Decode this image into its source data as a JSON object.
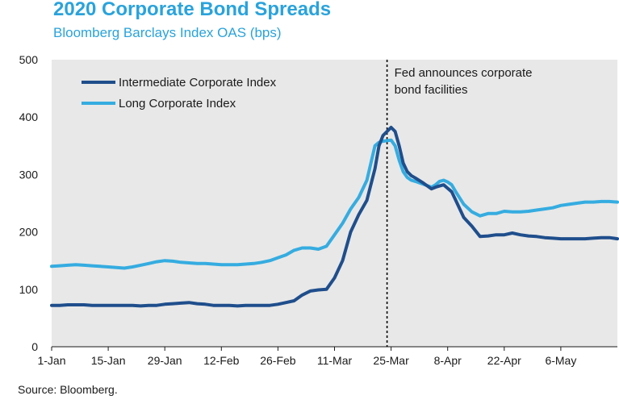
{
  "chart_data": {
    "type": "line",
    "title": "2020 Corporate Bond Spreads",
    "subtitle": "Bloomberg Barclays Index OAS (bps)",
    "source": "Source: Bloomberg.",
    "xlabel": "",
    "ylabel": "",
    "ylim": [
      0,
      500
    ],
    "yticks": [
      "0",
      "100",
      "200",
      "300",
      "400",
      "500"
    ],
    "xticks": [
      "1-Jan",
      "15-Jan",
      "29-Jan",
      "12-Feb",
      "26-Feb",
      "11-Mar",
      "25-Mar",
      "8-Apr",
      "22-Apr",
      "6-May"
    ],
    "xrange_days": [
      0,
      140
    ],
    "grid": false,
    "legend_position": "top-left",
    "annotation": {
      "lines": [
        "Fed announces corporate",
        "bond facilities"
      ],
      "x_day": 83
    },
    "series": [
      {
        "name": "Intermediate Corporate Index",
        "color": "#1f4e8c",
        "days": [
          0,
          2,
          4,
          6,
          8,
          10,
          12,
          14,
          16,
          18,
          20,
          22,
          24,
          26,
          28,
          30,
          32,
          34,
          36,
          38,
          40,
          42,
          44,
          46,
          48,
          50,
          52,
          54,
          56,
          58,
          60,
          62,
          64,
          66,
          68,
          70,
          72,
          74,
          76,
          78,
          80,
          81,
          82,
          83,
          84,
          85,
          86,
          87,
          88,
          89,
          90,
          92,
          94,
          95,
          96,
          97,
          98,
          99,
          100,
          102,
          104,
          106,
          108,
          110,
          112,
          114,
          116,
          118,
          120,
          122,
          124,
          126,
          128,
          130,
          132,
          134,
          136,
          138,
          140
        ],
        "values": [
          72,
          72,
          73,
          73,
          73,
          72,
          72,
          72,
          72,
          72,
          72,
          71,
          72,
          72,
          74,
          75,
          76,
          77,
          75,
          74,
          72,
          72,
          72,
          71,
          72,
          72,
          72,
          72,
          74,
          77,
          80,
          90,
          97,
          99,
          100,
          120,
          150,
          200,
          230,
          255,
          310,
          350,
          368,
          375,
          382,
          375,
          350,
          320,
          305,
          298,
          294,
          285,
          275,
          278,
          280,
          282,
          276,
          270,
          255,
          225,
          210,
          192,
          193,
          195,
          195,
          198,
          195,
          193,
          192,
          190,
          189,
          188,
          188,
          188,
          188,
          189,
          190,
          190,
          188
        ]
      },
      {
        "name": "Long Corporate Index",
        "color": "#35ace0",
        "days": [
          0,
          2,
          4,
          6,
          8,
          10,
          12,
          14,
          16,
          18,
          20,
          22,
          24,
          26,
          28,
          30,
          32,
          34,
          36,
          38,
          40,
          42,
          44,
          46,
          48,
          50,
          52,
          54,
          56,
          58,
          60,
          62,
          64,
          66,
          68,
          70,
          72,
          74,
          76,
          78,
          80,
          81,
          82,
          83,
          84,
          85,
          86,
          87,
          88,
          89,
          90,
          92,
          94,
          95,
          96,
          97,
          98,
          99,
          100,
          102,
          104,
          106,
          108,
          110,
          112,
          114,
          116,
          118,
          120,
          122,
          124,
          126,
          128,
          130,
          132,
          134,
          136,
          138,
          140
        ],
        "values": [
          140,
          141,
          142,
          143,
          142,
          141,
          140,
          139,
          138,
          137,
          139,
          142,
          145,
          148,
          150,
          149,
          147,
          146,
          145,
          145,
          144,
          143,
          143,
          143,
          144,
          145,
          147,
          150,
          155,
          160,
          168,
          172,
          172,
          170,
          175,
          195,
          215,
          240,
          260,
          290,
          350,
          356,
          358,
          359,
          360,
          350,
          325,
          305,
          295,
          290,
          288,
          283,
          278,
          282,
          288,
          290,
          287,
          282,
          270,
          248,
          235,
          228,
          232,
          232,
          236,
          235,
          235,
          236,
          238,
          240,
          242,
          246,
          248,
          250,
          252,
          252,
          253,
          253,
          252
        ]
      }
    ]
  }
}
